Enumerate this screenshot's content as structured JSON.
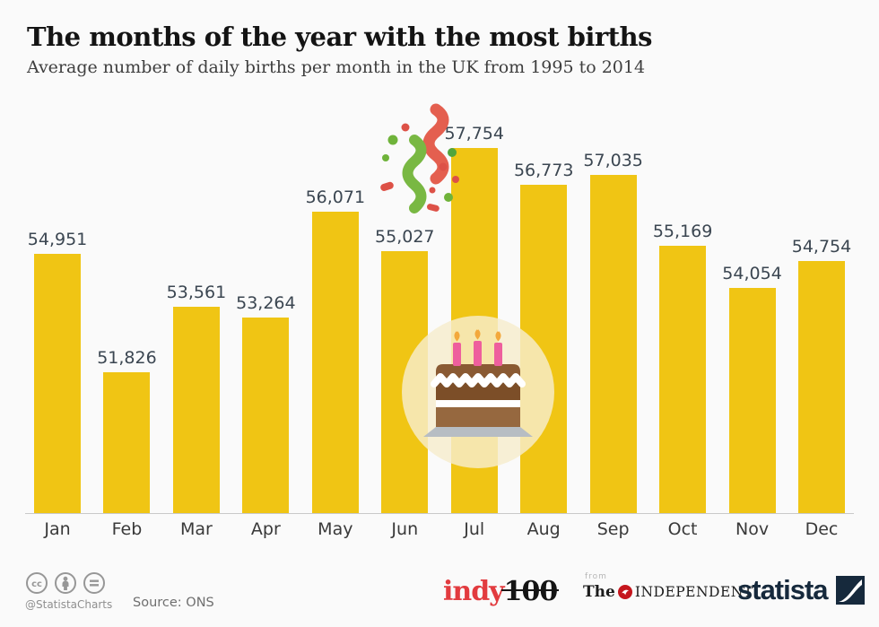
{
  "header": {
    "title": "The months of the year with the most births",
    "subtitle": "Average number of daily births per month in the UK from 1995 to 2014"
  },
  "chart_data": {
    "type": "bar",
    "title": "The months of the year with the most births",
    "subtitle": "Average number of daily births per month in the UK from 1995 to 2014",
    "categories": [
      "Jan",
      "Feb",
      "Mar",
      "Apr",
      "May",
      "Jun",
      "Jul",
      "Aug",
      "Sep",
      "Oct",
      "Nov",
      "Dec"
    ],
    "values": [
      54951,
      51826,
      53561,
      53264,
      56071,
      55027,
      57754,
      56773,
      57035,
      55169,
      54054,
      54754
    ],
    "value_labels": [
      "54,951",
      "51,826",
      "53,561",
      "53,264",
      "56,071",
      "55,027",
      "57,754",
      "56,773",
      "57,035",
      "55,169",
      "54,054",
      "54,754"
    ],
    "ylim": [
      48100,
      58300
    ],
    "grid": false,
    "legend": false,
    "bar_color": "#F0C514",
    "annotations": [
      "birthday cake illustration over June/July bars",
      "confetti next to July bar (highest value)"
    ]
  },
  "footer": {
    "license": {
      "handle": "@StatistaCharts",
      "icons": [
        "cc",
        "attribution",
        "no-derivatives"
      ]
    },
    "source": "Source: ONS",
    "partners": {
      "indy100": {
        "red": "indy",
        "black": "100"
      },
      "independent": {
        "from": "from",
        "the": "The",
        "name": "INDEPENDENT"
      },
      "statista": "statista"
    }
  },
  "colors": {
    "bar": "#F0C514",
    "value_text": "#3b4651",
    "background": "#fafafa",
    "baseline": "#c9c9c9",
    "statista_navy": "#16293c",
    "indy_red": "#e23b3f",
    "independent_red": "#c5161d",
    "confetti_red": "#e45f4f",
    "confetti_green": "#79b843"
  }
}
